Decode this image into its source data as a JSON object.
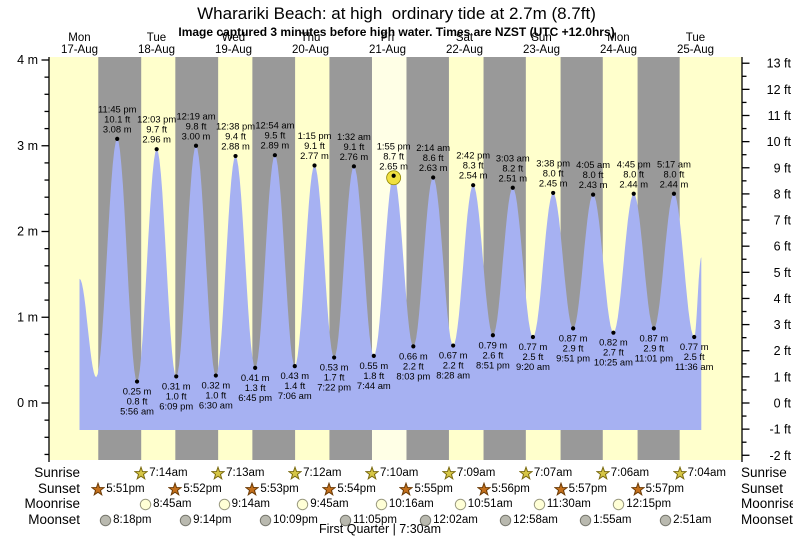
{
  "title": "Wharariki Beach: at high  ordinary tide at 2.7m (8.7ft)",
  "subtitle": "Image captured 3 minutes before high water. Times are NZST (UTC +12.0hrs)",
  "colors": {
    "day_band": "#ffffcc",
    "current_day_band": "#ffffe6",
    "night_band": "#999999",
    "tide_fill": "#a6b1f2",
    "date_red": "#ff4444",
    "sunrise_star_fill": "#d6c645",
    "sunrise_star_stroke": "#7a6a10",
    "sunset_star_fill": "#c4701c",
    "sunset_star_stroke": "#6b3a05",
    "moonrise_fill": "#ffffd6",
    "moonrise_stroke": "#9a9a80",
    "moonset_fill": "#b9b9af",
    "moonset_stroke": "#75756b",
    "current_marker_fill": "#f0e040",
    "current_marker_stroke": "#8f8400"
  },
  "chart_data": {
    "type": "area",
    "title": "Tide height over 9 days",
    "day_columns": [
      {
        "name": "Mon",
        "date": "17-Aug"
      },
      {
        "name": "Tue",
        "date": "18-Aug"
      },
      {
        "name": "Wed",
        "date": "19-Aug"
      },
      {
        "name": "Thu",
        "date": "20-Aug"
      },
      {
        "name": "Fri",
        "date": "21-Aug"
      },
      {
        "name": "Sat",
        "date": "22-Aug"
      },
      {
        "name": "Sun",
        "date": "23-Aug"
      },
      {
        "name": "Mon",
        "date": "24-Aug"
      },
      {
        "name": "Tue",
        "date": "25-Aug"
      }
    ],
    "y_axis_left": {
      "unit": "m",
      "major_ticks": [
        0,
        1,
        2,
        3,
        4
      ],
      "minor_step": 0.2,
      "min": -0.66,
      "max": 4
    },
    "y_axis_right": {
      "unit": "ft",
      "min": -2,
      "max": 13,
      "minor_step": 0.5
    },
    "highlight_day_index": 4,
    "tide_events": [
      {
        "kind": "high",
        "day": 0,
        "time": "11:45 pm",
        "ft": "10.1 ft",
        "m": "3.08 m"
      },
      {
        "kind": "low",
        "day": 1,
        "time": "5:56 am",
        "ft": "0.8 ft",
        "m": "0.25 m"
      },
      {
        "kind": "high",
        "day": 1,
        "time": "12:03 pm",
        "ft": "9.7 ft",
        "m": "2.96 m"
      },
      {
        "kind": "low",
        "day": 1,
        "time": "6:09 pm",
        "ft": "1.0 ft",
        "m": "0.31 m"
      },
      {
        "kind": "high",
        "day": 2,
        "time": "12:19 am",
        "ft": "9.8 ft",
        "m": "3.00 m"
      },
      {
        "kind": "low",
        "day": 2,
        "time": "6:30 am",
        "ft": "1.0 ft",
        "m": "0.32 m"
      },
      {
        "kind": "high",
        "day": 2,
        "time": "12:38 pm",
        "ft": "9.4 ft",
        "m": "2.88 m"
      },
      {
        "kind": "low",
        "day": 2,
        "time": "6:45 pm",
        "ft": "1.3 ft",
        "m": "0.41 m"
      },
      {
        "kind": "high",
        "day": 3,
        "time": "12:54 am",
        "ft": "9.5 ft",
        "m": "2.89 m"
      },
      {
        "kind": "low",
        "day": 3,
        "time": "7:06 am",
        "ft": "1.4 ft",
        "m": "0.43 m"
      },
      {
        "kind": "high",
        "day": 3,
        "time": "1:15 pm",
        "ft": "9.1 ft",
        "m": "2.77 m"
      },
      {
        "kind": "low",
        "day": 3,
        "time": "7:22 pm",
        "ft": "1.7 ft",
        "m": "0.53 m"
      },
      {
        "kind": "high",
        "day": 4,
        "time": "1:32 am",
        "ft": "9.1 ft",
        "m": "2.76 m"
      },
      {
        "kind": "low",
        "day": 4,
        "time": "7:44 am",
        "ft": "1.8 ft",
        "m": "0.55 m"
      },
      {
        "kind": "high",
        "day": 4,
        "time": "1:55 pm",
        "ft": "8.7 ft",
        "m": "2.65 m",
        "current": true
      },
      {
        "kind": "low",
        "day": 4,
        "time": "8:03 pm",
        "ft": "2.2 ft",
        "m": "0.66 m"
      },
      {
        "kind": "high",
        "day": 5,
        "time": "2:14 am",
        "ft": "8.6 ft",
        "m": "2.63 m"
      },
      {
        "kind": "low",
        "day": 5,
        "time": "8:28 am",
        "ft": "2.2 ft",
        "m": "0.67 m"
      },
      {
        "kind": "high",
        "day": 5,
        "time": "2:42 pm",
        "ft": "8.3 ft",
        "m": "2.54 m"
      },
      {
        "kind": "low",
        "day": 5,
        "time": "8:51 pm",
        "ft": "2.6 ft",
        "m": "0.79 m"
      },
      {
        "kind": "high",
        "day": 6,
        "time": "3:03 am",
        "ft": "8.2 ft",
        "m": "2.51 m"
      },
      {
        "kind": "low",
        "day": 6,
        "time": "9:20 am",
        "ft": "2.5 ft",
        "m": "0.77 m"
      },
      {
        "kind": "high",
        "day": 6,
        "time": "3:38 pm",
        "ft": "8.0 ft",
        "m": "2.45 m"
      },
      {
        "kind": "low",
        "day": 6,
        "time": "9:51 pm",
        "ft": "2.9 ft",
        "m": "0.87 m"
      },
      {
        "kind": "high",
        "day": 7,
        "time": "4:05 am",
        "ft": "8.0 ft",
        "m": "2.43 m"
      },
      {
        "kind": "low",
        "day": 7,
        "time": "10:25 am",
        "ft": "2.7 ft",
        "m": "0.82 m"
      },
      {
        "kind": "high",
        "day": 7,
        "time": "4:45 pm",
        "ft": "8.0 ft",
        "m": "2.44 m"
      },
      {
        "kind": "low",
        "day": 7,
        "time": "11:01 pm",
        "ft": "2.9 ft",
        "m": "0.87 m"
      },
      {
        "kind": "high",
        "day": 8,
        "time": "5:17 am",
        "ft": "8.0 ft",
        "m": "2.44 m"
      },
      {
        "kind": "low",
        "day": 8,
        "time": "11:36 am",
        "ft": "2.5 ft",
        "m": "0.77 m"
      }
    ],
    "curve_edges": {
      "start": {
        "day": 0,
        "hour": 12.0,
        "m": 1.45
      },
      "pre_low": {
        "day": 0,
        "hour": 17.2,
        "m": 0.3
      },
      "end": {
        "day": 8,
        "hour": 13.8,
        "m": 1.7
      }
    }
  },
  "astro": {
    "sunrise": {
      "label": "Sunrise",
      "items": [
        {
          "day": 1,
          "time": "7:14am"
        },
        {
          "day": 2,
          "time": "7:13am"
        },
        {
          "day": 3,
          "time": "7:12am"
        },
        {
          "day": 4,
          "time": "7:10am"
        },
        {
          "day": 5,
          "time": "7:09am"
        },
        {
          "day": 6,
          "time": "7:07am"
        },
        {
          "day": 7,
          "time": "7:06am"
        },
        {
          "day": 8,
          "time": "7:04am"
        }
      ]
    },
    "sunset": {
      "label": "Sunset",
      "items": [
        {
          "day": 0,
          "time": "5:51pm"
        },
        {
          "day": 1,
          "time": "5:52pm"
        },
        {
          "day": 2,
          "time": "5:53pm"
        },
        {
          "day": 3,
          "time": "5:54pm"
        },
        {
          "day": 4,
          "time": "5:55pm"
        },
        {
          "day": 5,
          "time": "5:56pm"
        },
        {
          "day": 6,
          "time": "5:57pm"
        },
        {
          "day": 7,
          "time": "5:57pm"
        }
      ]
    },
    "moonrise": {
      "label": "Moonrise",
      "items": [
        {
          "day": 1,
          "time": "8:45am"
        },
        {
          "day": 2,
          "time": "9:14am"
        },
        {
          "day": 3,
          "time": "9:45am"
        },
        {
          "day": 4,
          "time": "10:16am"
        },
        {
          "day": 5,
          "time": "10:51am"
        },
        {
          "day": 6,
          "time": "11:30am"
        },
        {
          "day": 7,
          "time": "12:15pm"
        }
      ]
    },
    "moonset": {
      "label": "Moonset",
      "items": [
        {
          "day": 0,
          "time": "8:18pm"
        },
        {
          "day": 1,
          "time": "9:14pm"
        },
        {
          "day": 2,
          "time": "10:09pm"
        },
        {
          "day": 3,
          "time": "11:05pm"
        },
        {
          "day": 5,
          "time": "12:02am"
        },
        {
          "day": 6,
          "time": "12:58am"
        },
        {
          "day": 7,
          "time": "1:55am"
        },
        {
          "day": 8,
          "time": "2:51am"
        }
      ]
    },
    "phase": "First Quarter | 7:30am"
  }
}
